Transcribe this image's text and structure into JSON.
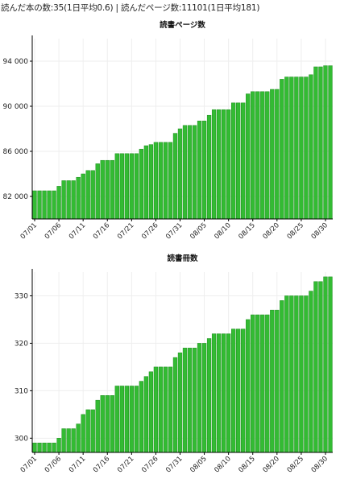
{
  "summary": "読んだ本の数:35(1日平均0.6) | 読んだページ数:11101(1日平均181)",
  "bar_color": "#33bb33",
  "chart_data": [
    {
      "type": "bar",
      "title": "読書ページ数",
      "xlabel": "",
      "ylabel": "",
      "ylim": [
        80000,
        96000
      ],
      "yticks": [
        82000,
        86000,
        90000,
        94000
      ],
      "ytick_labels": [
        "82 000",
        "86 000",
        "90 000",
        "94 000"
      ],
      "xtick_labels": [
        "07/01",
        "07/06",
        "07/11",
        "07/16",
        "07/21",
        "07/26",
        "07/31",
        "08/05",
        "08/10",
        "08/15",
        "08/20",
        "08/25",
        "08/30"
      ],
      "grid": true,
      "categories": [
        "07/01",
        "07/02",
        "07/03",
        "07/04",
        "07/05",
        "07/06",
        "07/07",
        "07/08",
        "07/09",
        "07/10",
        "07/11",
        "07/12",
        "07/13",
        "07/14",
        "07/15",
        "07/16",
        "07/17",
        "07/18",
        "07/19",
        "07/20",
        "07/21",
        "07/22",
        "07/23",
        "07/24",
        "07/25",
        "07/26",
        "07/27",
        "07/28",
        "07/29",
        "07/30",
        "07/31",
        "08/01",
        "08/02",
        "08/03",
        "08/04",
        "08/05",
        "08/06",
        "08/07",
        "08/08",
        "08/09",
        "08/10",
        "08/11",
        "08/12",
        "08/13",
        "08/14",
        "08/15",
        "08/16",
        "08/17",
        "08/18",
        "08/19",
        "08/20",
        "08/21",
        "08/22",
        "08/23",
        "08/24",
        "08/25",
        "08/26",
        "08/27",
        "08/28",
        "08/29",
        "08/30",
        "08/31"
      ],
      "values": [
        82500,
        82500,
        82500,
        82500,
        82500,
        82900,
        83400,
        83400,
        83400,
        83700,
        84000,
        84300,
        84300,
        84900,
        85200,
        85200,
        85200,
        85800,
        85800,
        85800,
        85800,
        85800,
        86200,
        86500,
        86600,
        86800,
        86800,
        86800,
        86800,
        87600,
        88000,
        88300,
        88300,
        88300,
        88700,
        88700,
        89200,
        89700,
        89700,
        89700,
        89700,
        90300,
        90300,
        90300,
        91100,
        91300,
        91300,
        91300,
        91300,
        91500,
        91500,
        92400,
        92600,
        92600,
        92600,
        92600,
        92600,
        92800,
        93500,
        93500,
        93600,
        93600
      ]
    },
    {
      "type": "bar",
      "title": "読書冊数",
      "xlabel": "",
      "ylabel": "",
      "ylim": [
        297,
        335
      ],
      "yticks": [
        300,
        310,
        320,
        330
      ],
      "ytick_labels": [
        "300",
        "310",
        "320",
        "330"
      ],
      "xtick_labels": [
        "07/01",
        "07/06",
        "07/11",
        "07/16",
        "07/21",
        "07/26",
        "07/31",
        "08/05",
        "08/10",
        "08/15",
        "08/20",
        "08/25",
        "08/30"
      ],
      "grid": true,
      "categories": [
        "07/01",
        "07/02",
        "07/03",
        "07/04",
        "07/05",
        "07/06",
        "07/07",
        "07/08",
        "07/09",
        "07/10",
        "07/11",
        "07/12",
        "07/13",
        "07/14",
        "07/15",
        "07/16",
        "07/17",
        "07/18",
        "07/19",
        "07/20",
        "07/21",
        "07/22",
        "07/23",
        "07/24",
        "07/25",
        "07/26",
        "07/27",
        "07/28",
        "07/29",
        "07/30",
        "07/31",
        "08/01",
        "08/02",
        "08/03",
        "08/04",
        "08/05",
        "08/06",
        "08/07",
        "08/08",
        "08/09",
        "08/10",
        "08/11",
        "08/12",
        "08/13",
        "08/14",
        "08/15",
        "08/16",
        "08/17",
        "08/18",
        "08/19",
        "08/20",
        "08/21",
        "08/22",
        "08/23",
        "08/24",
        "08/25",
        "08/26",
        "08/27",
        "08/28",
        "08/29",
        "08/30",
        "08/31"
      ],
      "values": [
        299,
        299,
        299,
        299,
        299,
        300,
        302,
        302,
        302,
        303,
        305,
        306,
        306,
        308,
        309,
        309,
        309,
        311,
        311,
        311,
        311,
        311,
        312,
        313,
        314,
        315,
        315,
        315,
        315,
        317,
        318,
        319,
        319,
        319,
        320,
        320,
        321,
        322,
        322,
        322,
        322,
        323,
        323,
        323,
        325,
        326,
        326,
        326,
        326,
        327,
        327,
        329,
        330,
        330,
        330,
        330,
        330,
        331,
        333,
        333,
        334,
        334
      ]
    }
  ]
}
